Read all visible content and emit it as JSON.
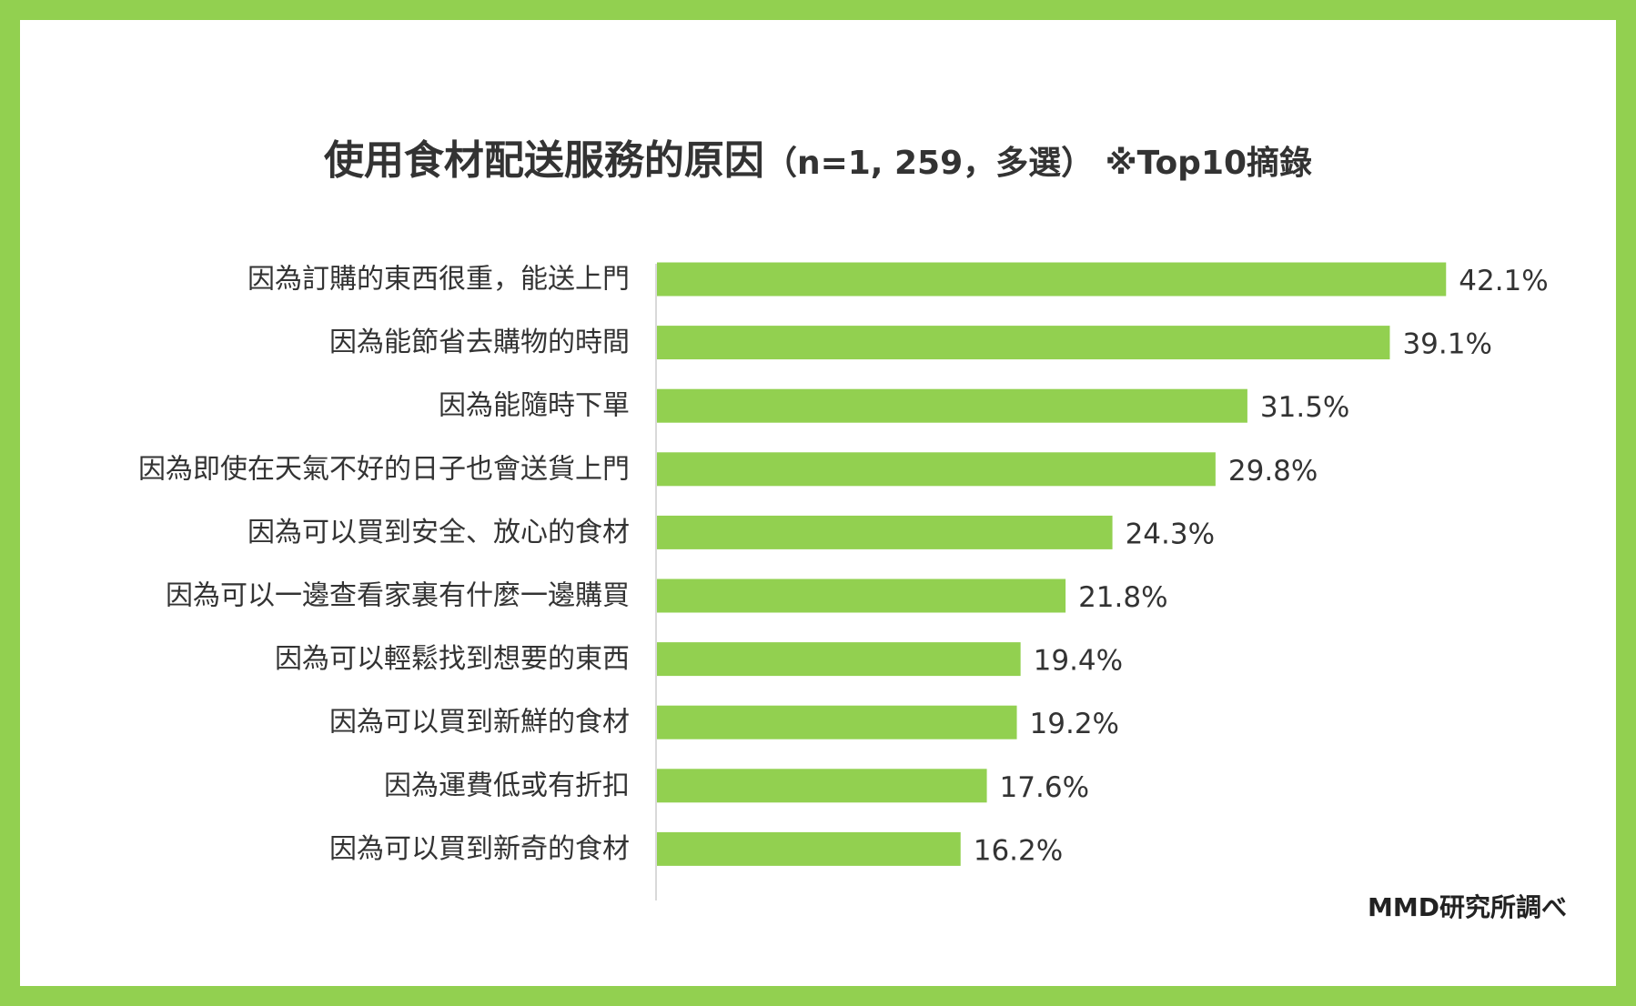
{
  "chart_data": {
    "type": "bar",
    "orientation": "horizontal",
    "title": "使用食材配送服務的原因",
    "subtitle": "（n=1, 259，多選） ※Top10摘錄",
    "categories": [
      "因為訂購的東西很重，能送上門",
      "因為能節省去購物的時間",
      "因為能隨時下單",
      "因為即使在天氣不好的日子也會送貨上門",
      "因為可以買到安全、放心的食材",
      "因為可以一邊查看家裏有什麼一邊購買",
      "因為可以輕鬆找到想要的東西",
      "因為可以買到新鮮的食材",
      "因為運費低或有折扣",
      "因為可以買到新奇的食材"
    ],
    "values": [
      42.1,
      39.1,
      31.5,
      29.8,
      24.3,
      21.8,
      19.4,
      19.2,
      17.6,
      16.2
    ],
    "value_labels": [
      "42.1%",
      "39.1%",
      "31.5%",
      "29.8%",
      "24.3%",
      "21.8%",
      "19.4%",
      "19.2%",
      "17.6%",
      "16.2%"
    ],
    "unit": "%",
    "bar_color": "#92d050",
    "frame_color": "#92d050",
    "legend": "none",
    "grid": false,
    "source": "MMD研究所調べ"
  }
}
